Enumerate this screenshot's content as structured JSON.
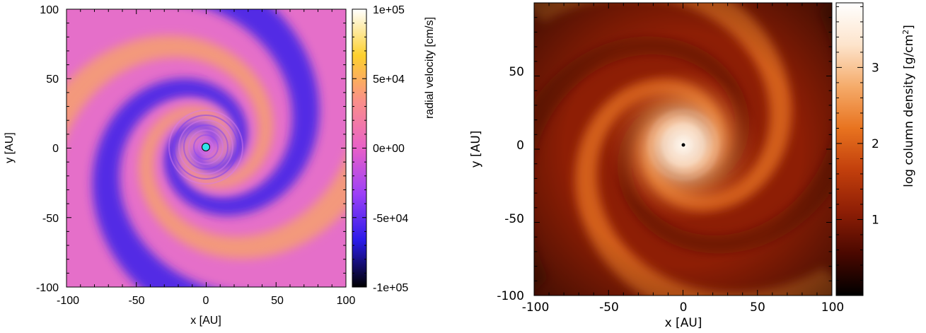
{
  "chart_data": [
    {
      "type": "heatmap",
      "title": "",
      "xlabel": "x [AU]",
      "ylabel": "y [AU]",
      "xlim": [
        -100,
        100
      ],
      "ylim": [
        -100,
        100
      ],
      "xticks": [
        "-100",
        "-50",
        "0",
        "50",
        "100"
      ],
      "yticks": [
        "-100",
        "-50",
        "0",
        "50",
        "100"
      ],
      "colorbar": {
        "label": "radial velocity [cm/s]",
        "range": [
          -100000,
          100000
        ],
        "ticks": [
          "-1e+05",
          "-5e+04",
          "0e+00",
          "5e+04",
          "1e+05"
        ],
        "colormap": [
          "#000000",
          "#2a1be8",
          "#9b40f7",
          "#e861c8",
          "#fa8f8a",
          "#fdd02e",
          "#ffffff"
        ]
      },
      "marker": {
        "x": 0,
        "y": 0,
        "color": "#2fe3ea"
      },
      "arms": 2,
      "grid": false
    },
    {
      "type": "heatmap",
      "title": "",
      "xlabel": "x [AU]",
      "ylabel": "y [AU]",
      "xlim": [
        -100,
        100
      ],
      "ylim": [
        -100,
        100
      ],
      "xticks": [
        "-100",
        "-50",
        "0",
        "50",
        "100"
      ],
      "yticks": [
        "-50",
        "0",
        "50"
      ],
      "corner_label": "-100",
      "colorbar": {
        "label_main": "log column density [g/cm",
        "label_sup": "2",
        "label_end": "]",
        "range": [
          0,
          3.85
        ],
        "ticks": [
          "1",
          "2",
          "3"
        ],
        "tick_values": [
          1,
          2,
          3
        ],
        "colormap": [
          "#000000",
          "#4a0800",
          "#8e1e05",
          "#c23f0c",
          "#e8731f",
          "#f5ab6a",
          "#fde4cc",
          "#ffffff"
        ]
      },
      "marker": {
        "x": 0,
        "y": 0,
        "color": "#000000"
      },
      "arms": 2,
      "grid": false
    }
  ]
}
